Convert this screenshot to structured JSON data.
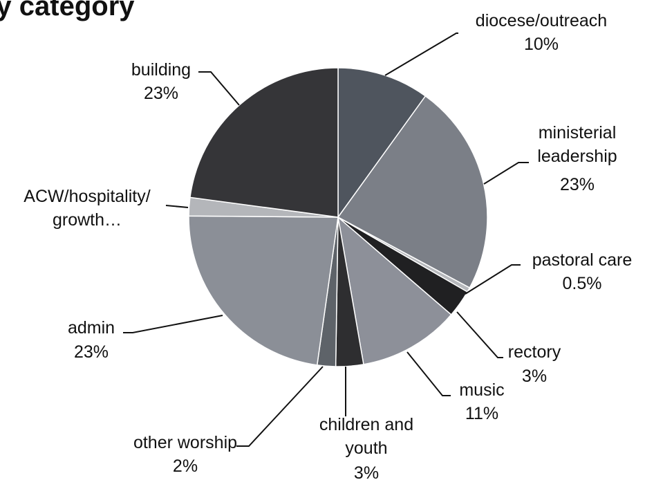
{
  "chart_data": {
    "type": "pie",
    "title": "by category",
    "slices": [
      {
        "label": "diocese/outreach",
        "value": 10,
        "display": "10%",
        "color": "#4f555e"
      },
      {
        "label": "ministerial leadership",
        "value": 23,
        "display": "23%",
        "color": "#7b7f87"
      },
      {
        "label": "pastoral care",
        "value": 0.5,
        "display": "0.5%",
        "color": "#b7b9bd"
      },
      {
        "label": "rectory",
        "value": 3,
        "display": "3%",
        "color": "#202022"
      },
      {
        "label": "music",
        "value": 11,
        "display": "11%",
        "color": "#8d9099"
      },
      {
        "label": "children and youth",
        "value": 3,
        "display": "3%",
        "color": "#2e2e30"
      },
      {
        "label": "other worship",
        "value": 2,
        "display": "2%",
        "color": "#5e6369"
      },
      {
        "label": "admin",
        "value": 23,
        "display": "23%",
        "color": "#8b8f97"
      },
      {
        "label": "ACW/hospitality/ growth…",
        "value": 2,
        "display": "",
        "color": "#b4b6ba"
      },
      {
        "label": "building",
        "value": 23,
        "display": "23%",
        "color": "#353538"
      }
    ]
  }
}
